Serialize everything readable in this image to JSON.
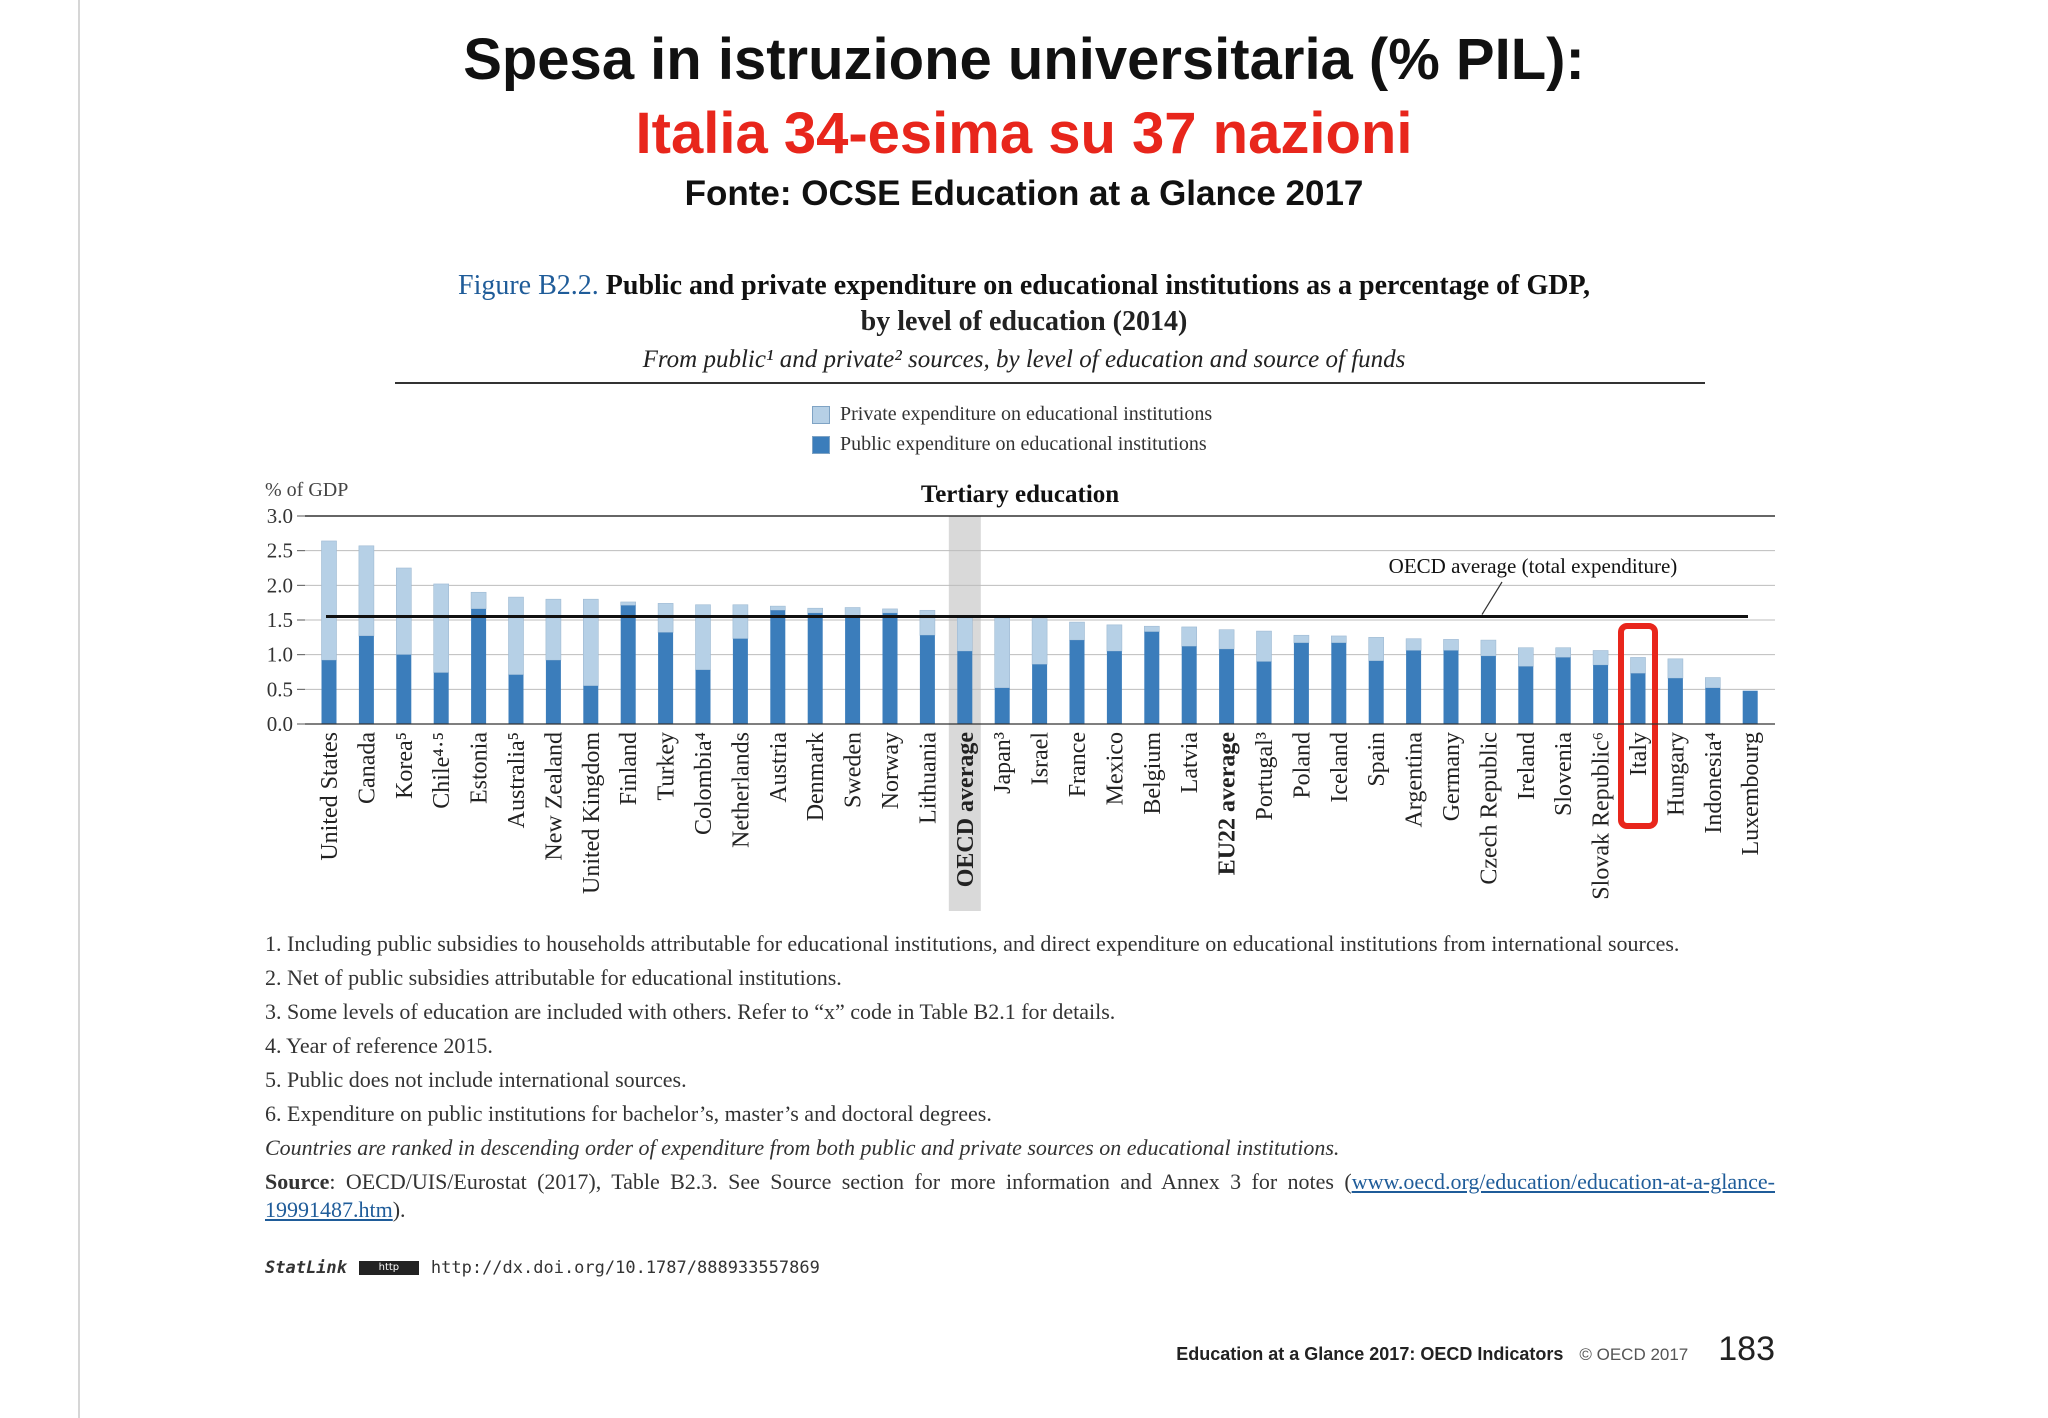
{
  "slide": {
    "title_line1": "Spesa in istruzione universitaria (% PIL):",
    "title_line2": "Italia 34-esima su 37 nazioni",
    "title_line3": "Fonte: OCSE Education at a Glance 2017"
  },
  "figure": {
    "label": "Figure B2.2.",
    "title_a": "Public and private expenditure on educational institutions as a percentage of GDP,",
    "title_b": "by level of education (2014)",
    "subtitle": "From public¹ and private² sources, by level of education and source of funds"
  },
  "legend": {
    "private": "Private expenditure on educational institutions",
    "public": "Public expenditure on educational institutions"
  },
  "colors": {
    "public": "#3b7dbb",
    "private": "#b6d0e6",
    "highlight": "#e8261c",
    "average_band": "#d9d9d9"
  },
  "chart_data": {
    "type": "bar",
    "stacked": true,
    "title": "Tertiary education",
    "ylabel": "% of GDP",
    "ylim": [
      0,
      3.0
    ],
    "yticks": [
      "0.0",
      "0.5",
      "1.0",
      "1.5",
      "2.0",
      "2.5",
      "3.0"
    ],
    "grid": true,
    "legend_position": "top",
    "categories": [
      "United States",
      "Canada",
      "Korea⁵",
      "Chile⁴·⁵",
      "Estonia",
      "Australia⁵",
      "New Zealand",
      "United Kingdom",
      "Finland",
      "Turkey",
      "Colombia⁴",
      "Netherlands",
      "Austria",
      "Denmark",
      "Sweden",
      "Norway",
      "Lithuania",
      "OECD average",
      "Japan³",
      "Israel",
      "France",
      "Mexico",
      "Belgium",
      "Latvia",
      "EU22 average",
      "Portugal³",
      "Poland",
      "Iceland",
      "Spain",
      "Argentina",
      "Germany",
      "Czech Republic",
      "Ireland",
      "Slovenia",
      "Slovak Republic⁶",
      "Italy",
      "Hungary",
      "Indonesia⁴",
      "Luxembourg"
    ],
    "bold_categories": [
      "OECD average",
      "EU22 average"
    ],
    "highlighted_category": "Italy",
    "series": [
      {
        "name": "Public expenditure on educational institutions",
        "values": [
          0.92,
          1.27,
          1.0,
          0.74,
          1.66,
          0.71,
          0.92,
          0.55,
          1.71,
          1.32,
          0.78,
          1.23,
          1.64,
          1.6,
          1.55,
          1.6,
          1.28,
          1.05,
          0.52,
          0.86,
          1.21,
          1.05,
          1.33,
          1.12,
          1.08,
          0.9,
          1.17,
          1.17,
          0.91,
          1.06,
          1.06,
          0.98,
          0.83,
          0.96,
          0.85,
          0.73,
          0.66,
          0.52,
          0.48
        ]
      },
      {
        "name": "Private expenditure on educational institutions",
        "values": [
          1.72,
          1.3,
          1.25,
          1.28,
          0.24,
          1.12,
          0.88,
          1.25,
          0.05,
          0.42,
          0.94,
          0.49,
          0.06,
          0.07,
          0.13,
          0.06,
          0.36,
          0.5,
          1.01,
          0.66,
          0.26,
          0.38,
          0.08,
          0.28,
          0.28,
          0.44,
          0.11,
          0.1,
          0.34,
          0.17,
          0.16,
          0.23,
          0.27,
          0.14,
          0.21,
          0.23,
          0.28,
          0.15,
          0.0
        ]
      }
    ],
    "reference_line": {
      "label": "OECD average (total expenditure)",
      "value": 1.55
    }
  },
  "notes": [
    "1. Including public subsidies to households attributable for educational institutions, and direct expenditure on educational institutions from international sources.",
    "2. Net of public subsidies attributable for educational institutions.",
    "3. Some levels of education are included with others. Refer to “x” code in Table B2.1 for details.",
    "4. Year of reference 2015.",
    "5. Public does not include international sources.",
    "6. Expenditure on public institutions for bachelor’s, master’s and doctoral degrees."
  ],
  "ranking_note": "Countries are ranked in descending order of expenditure from both public and private sources on educational institutions.",
  "source": {
    "label": "Source",
    "text": ": OECD/UIS/Eurostat (2017), Table B2.3. See Source section for more information and Annex 3 for notes (",
    "link": "www.oecd.org/education/education-at-a-glance-19991487.htm",
    "end": ")."
  },
  "statlink": {
    "label": "StatLink",
    "logo": "http",
    "url": "http://dx.doi.org/10.1787/888933557869"
  },
  "footer": {
    "publication": "Education at a Glance 2017: OECD Indicators",
    "copyright": "© OECD 2017",
    "page": "183"
  }
}
